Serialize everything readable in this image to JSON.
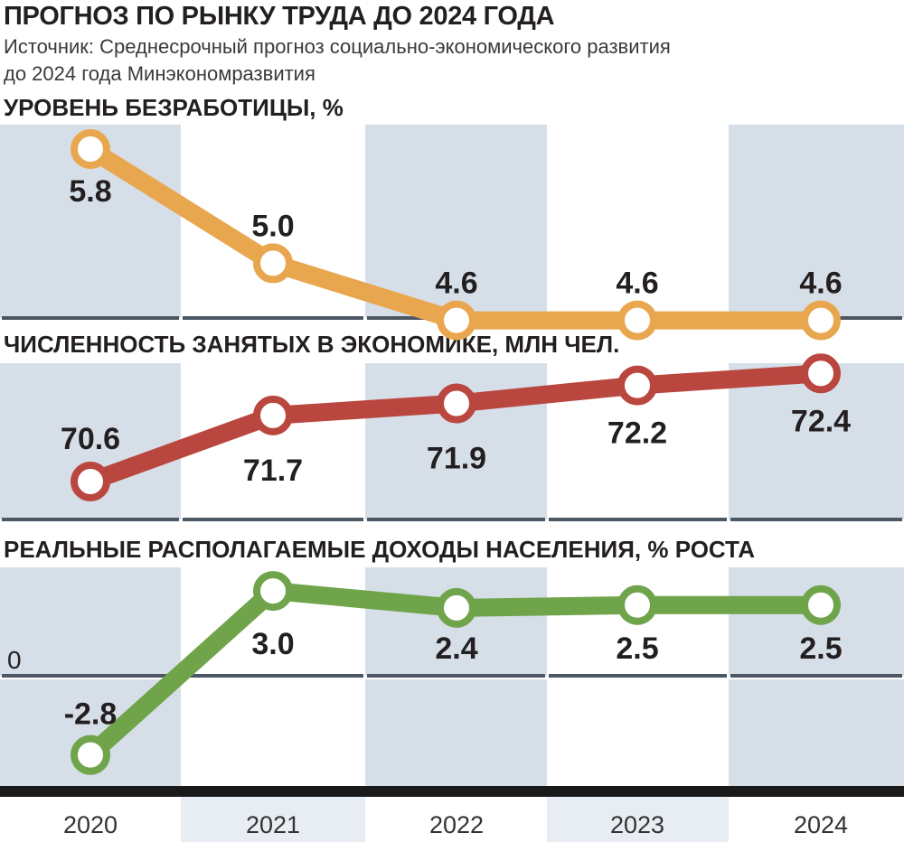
{
  "title": "ПРОГНОЗ ПО РЫНКУ ТРУДА ДО 2024 ГОДА",
  "source": {
    "line1": "Источник: Среднесрочный прогноз социально-экономического развития",
    "line2": "до 2024 года Минэкономразвития"
  },
  "colors": {
    "band": "#d6dfe8",
    "baseline": "#4c5764",
    "bottom_bar": "#1a1a1a",
    "orange": "#e8a74e",
    "red": "#b9473f",
    "green": "#6fa44b"
  },
  "chart_data": [
    {
      "type": "line",
      "title": "УРОВЕНЬ БЕЗРАБОТИЦЫ, %",
      "x": [
        "2020",
        "2021",
        "2022",
        "2023",
        "2024"
      ],
      "values": [
        5.8,
        5.0,
        4.6,
        4.6,
        4.6
      ],
      "value_labels": [
        "5.8",
        "5.0",
        "4.6",
        "4.6",
        "4.6"
      ],
      "color": "orange"
    },
    {
      "type": "line",
      "title": "ЧИСЛЕННОСТЬ ЗАНЯТЫХ В ЭКОНОМИКЕ, МЛН ЧЕЛ.",
      "x": [
        "2020",
        "2021",
        "2022",
        "2023",
        "2024"
      ],
      "values": [
        70.6,
        71.7,
        71.9,
        72.2,
        72.4
      ],
      "value_labels": [
        "70.6",
        "71.7",
        "71.9",
        "72.2",
        "72.4"
      ],
      "color": "red"
    },
    {
      "type": "line",
      "title": "РЕАЛЬНЫЕ РАСПОЛАГАЕМЫЕ ДОХОДЫ НАСЕЛЕНИЯ, % РОСТА",
      "x": [
        "2020",
        "2021",
        "2022",
        "2023",
        "2024"
      ],
      "values": [
        -2.8,
        3.0,
        2.4,
        2.5,
        2.5
      ],
      "value_labels": [
        "-2.8",
        "3.0",
        "2.4",
        "2.5",
        "2.5"
      ],
      "zero_label": "0",
      "color": "green"
    }
  ],
  "years": [
    "2020",
    "2021",
    "2022",
    "2023",
    "2024"
  ]
}
